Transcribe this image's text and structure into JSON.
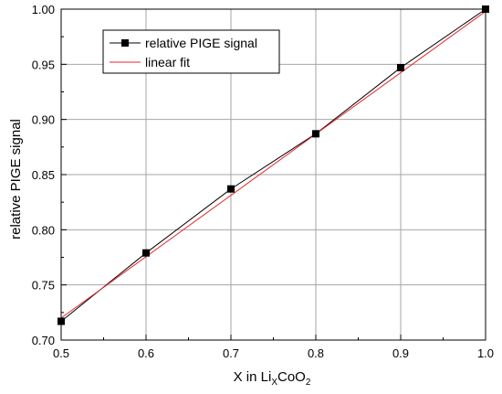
{
  "chart_data": {
    "type": "line",
    "xlabel": "X in Li",
    "xlabel_sub": "X",
    "xlabel_mid": "CoO",
    "xlabel_sub2": "2",
    "ylabel": "relative PIGE signal",
    "xlim": [
      0.5,
      1.0
    ],
    "ylim": [
      0.7,
      1.0
    ],
    "x_ticks": [
      0.5,
      0.6,
      0.7,
      0.8,
      0.9,
      1.0
    ],
    "x_tick_labels": [
      "0.5",
      "0.6",
      "0.7",
      "0.8",
      "0.9",
      "1.0"
    ],
    "y_ticks": [
      0.7,
      0.75,
      0.8,
      0.85,
      0.9,
      0.95,
      1.0
    ],
    "y_tick_labels": [
      "0.70",
      "0.75",
      "0.80",
      "0.85",
      "0.90",
      "0.95",
      "1.00"
    ],
    "grid": true,
    "legend_position": "top-left",
    "series": [
      {
        "name": "relative PIGE signal",
        "color": "#000000",
        "marker": "square",
        "x": [
          0.5,
          0.6,
          0.7,
          0.8,
          0.9,
          1.0
        ],
        "y": [
          0.717,
          0.779,
          0.837,
          0.887,
          0.947,
          1.0
        ]
      },
      {
        "name": "linear fit",
        "color": "#e8262a",
        "marker": "none",
        "x": [
          0.5,
          1.0
        ],
        "y": [
          0.72,
          0.998
        ]
      }
    ]
  }
}
